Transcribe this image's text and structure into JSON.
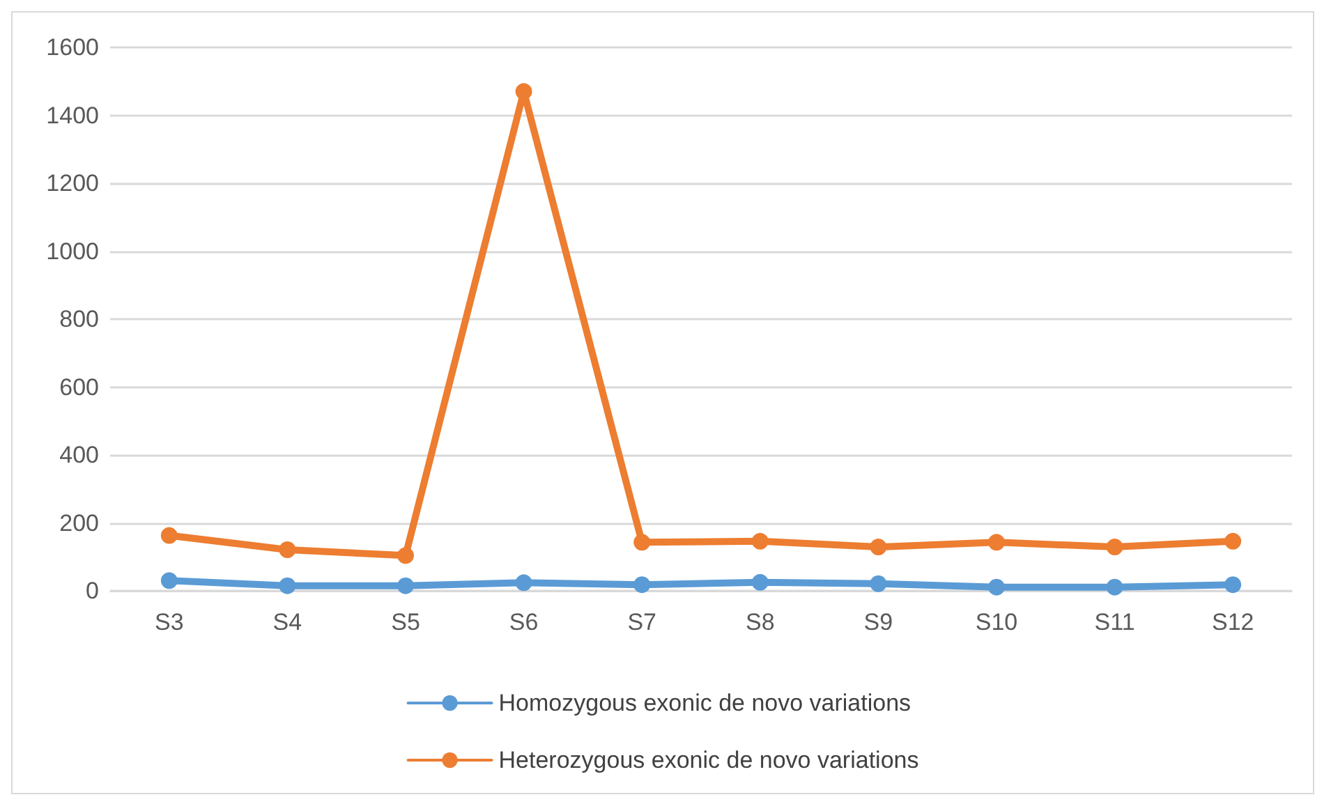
{
  "chart_data": {
    "type": "line",
    "categories": [
      "S3",
      "S4",
      "S5",
      "S6",
      "S7",
      "S8",
      "S9",
      "S10",
      "S11",
      "S12"
    ],
    "series": [
      {
        "name": "Homozygous exonic de novo variations",
        "color": "#5b9bd5",
        "values": [
          30,
          15,
          15,
          24,
          18,
          25,
          21,
          11,
          11,
          18
        ]
      },
      {
        "name": "Heterozygous exonic de novo variations",
        "color": "#ed7d31",
        "values": [
          163,
          121,
          104,
          1470,
          143,
          146,
          129,
          143,
          129,
          146
        ]
      }
    ],
    "ylim": [
      0,
      1600
    ],
    "yticks": [
      0,
      200,
      400,
      600,
      800,
      1000,
      1200,
      1400,
      1600
    ],
    "grid": "y",
    "legend": "bottom",
    "marker": "circle",
    "line_style": "solid"
  }
}
